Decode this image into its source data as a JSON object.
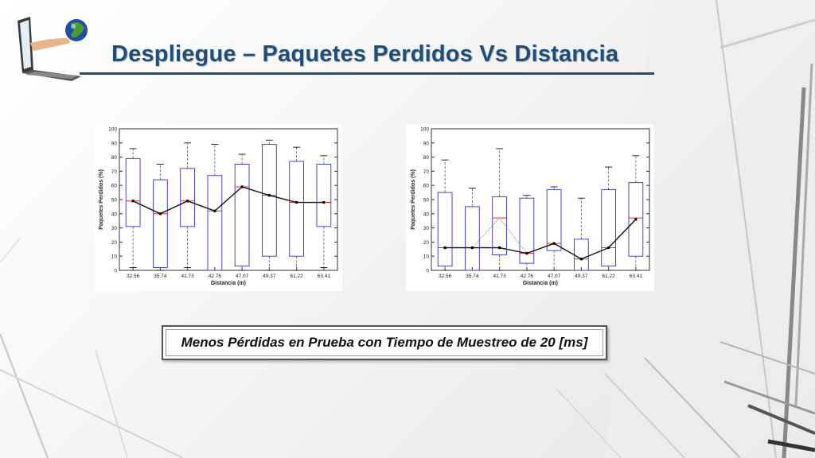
{
  "slide": {
    "title": "Despliegue – Paquetes Perdidos Vs Distancia",
    "caption": "Menos Pérdidas en Prueba con Tiempo de Muestreo de 20 [ms]",
    "accent_color": "#1f4e79",
    "logo_icon": "laptop-hand-globe-icon"
  },
  "chart_data": [
    {
      "type": "box",
      "xlabel": "Distancia (m)",
      "ylabel": "Paquetes Perdidos (%)",
      "ylim": [
        0,
        100
      ],
      "yticks": [
        0,
        10,
        20,
        30,
        40,
        50,
        60,
        70,
        80,
        90,
        100
      ],
      "categories": [
        "32.56",
        "35.74",
        "41.73",
        "42.76",
        "47.07",
        "49.37",
        "61.22",
        "63.41"
      ],
      "boxes": [
        {
          "q1": 31,
          "q3": 79,
          "median": 49,
          "whisker_low": 2,
          "whisker_high": 86
        },
        {
          "q1": 2,
          "q3": 64,
          "median": 40,
          "whisker_low": 0,
          "whisker_high": 75
        },
        {
          "q1": 31,
          "q3": 72,
          "median": 49,
          "whisker_low": 2,
          "whisker_high": 90
        },
        {
          "q1": 0,
          "q3": 67,
          "median": 42,
          "whisker_low": 0,
          "whisker_high": 89
        },
        {
          "q1": 3,
          "q3": 75,
          "median": 59,
          "whisker_low": 0,
          "whisker_high": 82
        },
        {
          "q1": 10,
          "q3": 89,
          "median": 53,
          "whisker_low": 0,
          "whisker_high": 92
        },
        {
          "q1": 10,
          "q3": 77,
          "median": 48,
          "whisker_low": 0,
          "whisker_high": 87
        },
        {
          "q1": 31,
          "q3": 75,
          "median": 48,
          "whisker_low": 2,
          "whisker_high": 81
        }
      ],
      "mean_line": [
        49,
        40,
        49,
        42,
        59,
        53,
        48,
        48
      ],
      "box_color": "#3333cc",
      "median_color": "#dd3333",
      "whisker_color": "#555555",
      "line_color": "#111111"
    },
    {
      "type": "box",
      "xlabel": "Distancia (m)",
      "ylabel": "Paquetes Perdidos (%)",
      "ylim": [
        0,
        100
      ],
      "yticks": [
        0,
        10,
        20,
        30,
        40,
        50,
        60,
        70,
        80,
        90,
        100
      ],
      "categories": [
        "32.56",
        "35.74",
        "41.73",
        "42.76",
        "47.07",
        "49.37",
        "61.22",
        "63.41"
      ],
      "boxes": [
        {
          "q1": 3,
          "q3": 55,
          "median": 16,
          "whisker_low": 0,
          "whisker_high": 78
        },
        {
          "q1": 0,
          "q3": 45,
          "median": 16,
          "whisker_low": 0,
          "whisker_high": 58
        },
        {
          "q1": 11,
          "q3": 52,
          "median": 37,
          "whisker_low": 0,
          "whisker_high": 86
        },
        {
          "q1": 5,
          "q3": 51,
          "median": 12,
          "whisker_low": 0,
          "whisker_high": 53
        },
        {
          "q1": 14,
          "q3": 57,
          "median": 19,
          "whisker_low": 0,
          "whisker_high": 59
        },
        {
          "q1": 0,
          "q3": 22,
          "median": 8,
          "whisker_low": 0,
          "whisker_high": 51
        },
        {
          "q1": 3,
          "q3": 57,
          "median": 16,
          "whisker_low": 0,
          "whisker_high": 73
        },
        {
          "q1": 10,
          "q3": 62,
          "median": 37,
          "whisker_low": 0,
          "whisker_high": 81
        }
      ],
      "mean_line": [
        16,
        16,
        16,
        12,
        19,
        8,
        16,
        36
      ],
      "dotted_line": [
        16,
        16,
        37,
        12
      ],
      "box_color": "#3333cc",
      "median_color": "#dd3333",
      "whisker_color": "#555555",
      "line_color": "#111111"
    }
  ]
}
